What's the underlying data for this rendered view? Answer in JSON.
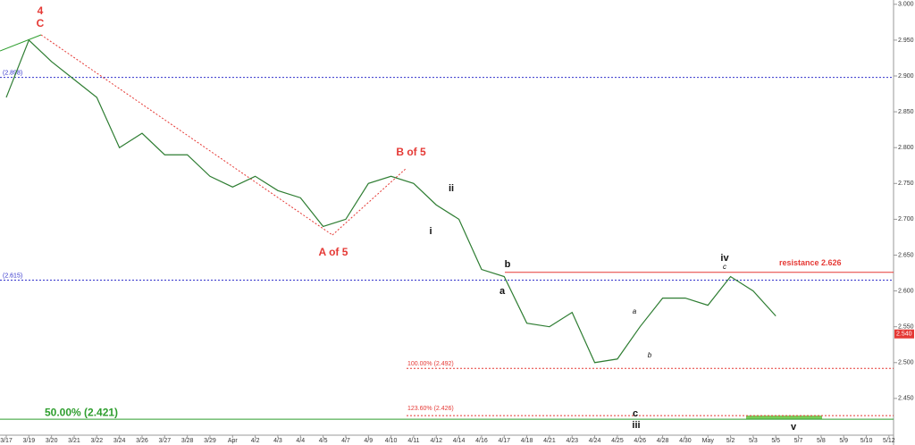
{
  "chart_data": {
    "type": "line",
    "categories": [
      "3/17",
      "3/19",
      "3/20",
      "3/21",
      "3/22",
      "3/24",
      "3/26",
      "3/27",
      "3/28",
      "3/29",
      "Apr",
      "4/2",
      "4/3",
      "4/4",
      "4/5",
      "4/7",
      "4/9",
      "4/10",
      "4/11",
      "4/12",
      "4/14",
      "4/16",
      "4/17",
      "4/18",
      "4/21",
      "4/23",
      "4/24",
      "4/25",
      "4/26",
      "4/28",
      "4/30",
      "May",
      "5/2",
      "5/3",
      "5/5",
      "5/7",
      "5/8",
      "5/9",
      "5/10",
      "5/12"
    ],
    "series": [
      {
        "color": "#2e7d32",
        "values": [
          2.87,
          2.95,
          2.92,
          2.895,
          2.87,
          2.8,
          2.82,
          2.79,
          2.79,
          2.76,
          2.745,
          2.76,
          2.74,
          2.73,
          2.69,
          2.7,
          2.75,
          2.76,
          2.75,
          2.72,
          2.7,
          2.63,
          2.62,
          2.555,
          2.55,
          2.57,
          2.5,
          2.505,
          2.55,
          2.59,
          2.59,
          2.58,
          2.62,
          2.6,
          2.565,
          null,
          null,
          null,
          null,
          null
        ]
      }
    ],
    "ylim": [
      2.385,
      3.006
    ],
    "yticks": [
      {
        "value": 3,
        "label": "3.000"
      },
      {
        "value": 2.95,
        "label": "2.950"
      },
      {
        "value": 2.9,
        "label": "2.900"
      },
      {
        "value": 2.85,
        "label": "2.850"
      },
      {
        "value": 2.8,
        "label": "2.800"
      },
      {
        "value": 2.75,
        "label": "2.750"
      },
      {
        "value": 2.7,
        "label": "2.700"
      },
      {
        "value": 2.65,
        "label": "2.650"
      },
      {
        "value": 2.6,
        "label": "2.600"
      },
      {
        "value": 2.55,
        "label": "2.550"
      },
      {
        "value": 2.5,
        "label": "2.500"
      },
      {
        "value": 2.45,
        "label": "2.450"
      }
    ],
    "last_value": {
      "value": 2.54,
      "label": "2.540"
    },
    "levels": [
      {
        "value": 2.898,
        "label": "(2.898)",
        "color": "#3333cc"
      },
      {
        "value": 2.615,
        "label": "(2.615)",
        "color": "#3333cc"
      },
      {
        "value": 2.626,
        "label": "resistance 2.626",
        "color": "#e53935"
      },
      {
        "value": 2.492,
        "label": "100.00% (2.492)",
        "color": "#e53935"
      },
      {
        "value": 2.426,
        "label": "123.60% (2.426)",
        "color": "#e53935"
      },
      {
        "value": 2.421,
        "label": "50.00% (2.421)",
        "color": "#2e9e2e"
      }
    ],
    "annotations": [
      "4",
      "C",
      "B of 5",
      "A of 5",
      "ii",
      "i",
      "b",
      "a",
      "c",
      "iii",
      "iv",
      "c",
      "v",
      "a",
      "b"
    ]
  }
}
